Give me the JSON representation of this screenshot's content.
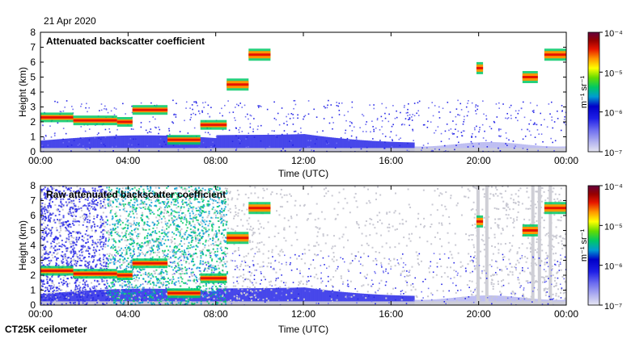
{
  "date": "21 Apr 2020",
  "instrument": "CT25K ceilometer",
  "colors": {
    "background": "#ffffff",
    "clear_air_noise": "#cfcfd6",
    "colormap": [
      "#e6e6f2",
      "#b4b4f0",
      "#6e6ef0",
      "#2828e6",
      "#0000c8",
      "#009bd2",
      "#00c864",
      "#64dc00",
      "#ffff00",
      "#ff9600",
      "#e61400",
      "#960000",
      "#64003c"
    ]
  },
  "chart_data": [
    {
      "type": "heatmap",
      "title": "Attenuated backscatter coefficient",
      "xlabel": "Time (UTC)",
      "ylabel": "Height (km)",
      "xticks": [
        "00:00",
        "04:00",
        "08:00",
        "12:00",
        "16:00",
        "20:00",
        "00:00"
      ],
      "xlim": [
        0,
        24
      ],
      "yticks": [
        "0",
        "1",
        "2",
        "3",
        "4",
        "5",
        "6",
        "7",
        "8"
      ],
      "ylim": [
        0,
        8
      ],
      "colorbar": {
        "label": "m⁻¹ sr⁻¹",
        "scale": "log",
        "range": [
          1e-07,
          0.0001
        ],
        "ticks": [
          "10⁻⁷",
          "10⁻⁶",
          "10⁻⁵",
          "10⁻⁴"
        ]
      },
      "cloud_layers_km": [
        {
          "start_h": 0.0,
          "end_h": 1.5,
          "height": 2.3
        },
        {
          "start_h": 1.5,
          "end_h": 3.5,
          "height": 2.1
        },
        {
          "start_h": 3.5,
          "end_h": 4.2,
          "height": 2.0
        },
        {
          "start_h": 4.2,
          "end_h": 5.8,
          "height": 2.8
        },
        {
          "start_h": 5.8,
          "end_h": 7.3,
          "height": 0.8
        },
        {
          "start_h": 7.3,
          "end_h": 8.5,
          "height": 1.8
        },
        {
          "start_h": 8.5,
          "end_h": 9.5,
          "height": 4.5
        },
        {
          "start_h": 9.5,
          "end_h": 10.5,
          "height": 6.5
        },
        {
          "start_h": 19.9,
          "end_h": 20.2,
          "height": 5.6
        },
        {
          "start_h": 22.0,
          "end_h": 22.7,
          "height": 5.0
        },
        {
          "start_h": 23.0,
          "end_h": 24.0,
          "height": 6.5
        }
      ]
    },
    {
      "type": "heatmap",
      "title": "Raw attenuated backscatter coefficient",
      "xlabel": "Time (UTC)",
      "ylabel": "Height (km)",
      "xticks": [
        "00:00",
        "04:00",
        "08:00",
        "12:00",
        "16:00",
        "20:00",
        "00:00"
      ],
      "xlim": [
        0,
        24
      ],
      "yticks": [
        "0",
        "1",
        "2",
        "3",
        "4",
        "5",
        "6",
        "7",
        "8"
      ],
      "ylim": [
        0,
        8
      ],
      "colorbar": {
        "label": "m⁻¹ sr⁻¹",
        "scale": "log",
        "range": [
          1e-07,
          0.0001
        ],
        "ticks": [
          "10⁻⁷",
          "10⁻⁶",
          "10⁻⁵",
          "10⁻⁴"
        ]
      }
    }
  ]
}
